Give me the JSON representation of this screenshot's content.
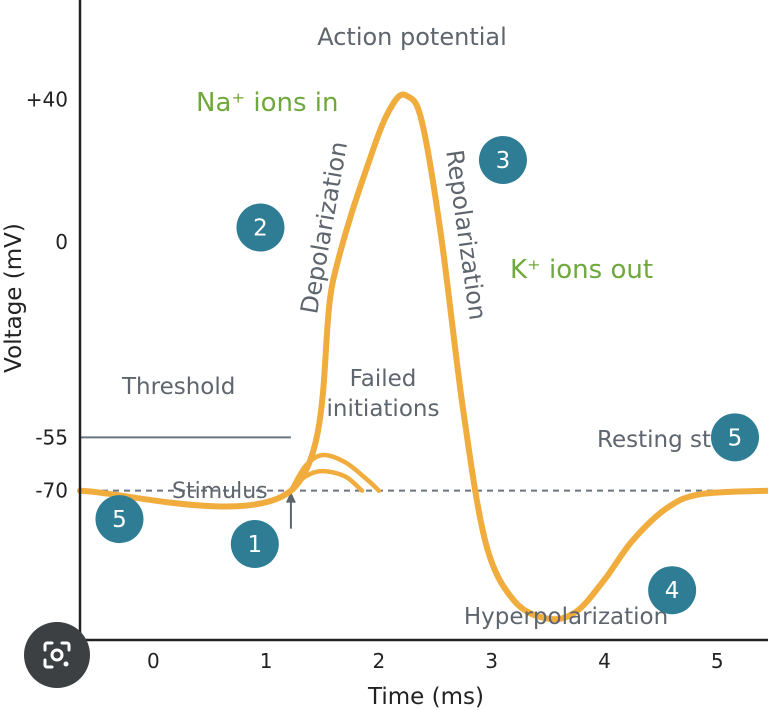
{
  "chart_data": {
    "type": "line",
    "title": "Action potential",
    "xlabel": "Time (ms)",
    "ylabel": "Voltage (mV)",
    "xlim": [
      -0.65,
      5.45
    ],
    "ylim": [
      -112,
      68
    ],
    "x_ticks": [
      {
        "value": 0,
        "label": "0"
      },
      {
        "value": 1,
        "label": "1"
      },
      {
        "value": 2,
        "label": "2"
      },
      {
        "value": 3,
        "label": "3"
      },
      {
        "value": 4,
        "label": "4"
      },
      {
        "value": 5,
        "label": "5"
      }
    ],
    "y_ticks": [
      {
        "value": 40,
        "label": "+40"
      },
      {
        "value": 0,
        "label": "0"
      },
      {
        "value": -55,
        "label": "-55"
      },
      {
        "value": -70,
        "label": "-70"
      }
    ],
    "series": [
      {
        "name": "Action potential",
        "color": "#f0ac3c",
        "points": [
          [
            -0.65,
            -70
          ],
          [
            1.22,
            -70
          ],
          [
            1.6,
            -10
          ],
          [
            1.95,
            26
          ],
          [
            2.13,
            39
          ],
          [
            2.25,
            41
          ],
          [
            2.38,
            34
          ],
          [
            2.55,
            2
          ],
          [
            2.75,
            -48
          ],
          [
            2.95,
            -85
          ],
          [
            3.2,
            -101
          ],
          [
            3.5,
            -106
          ],
          [
            3.75,
            -104
          ],
          [
            4.0,
            -95
          ],
          [
            4.25,
            -84
          ],
          [
            4.55,
            -75
          ],
          [
            4.85,
            -71
          ],
          [
            5.45,
            -70
          ]
        ]
      },
      {
        "name": "Failed initiation 1",
        "color": "#f0ac3c",
        "points": [
          [
            1.22,
            -70
          ],
          [
            1.35,
            -63
          ],
          [
            1.5,
            -60
          ],
          [
            1.7,
            -62
          ],
          [
            1.9,
            -67
          ],
          [
            2.0,
            -70
          ]
        ]
      },
      {
        "name": "Failed initiation 2",
        "color": "#f0ac3c",
        "points": [
          [
            1.22,
            -70
          ],
          [
            1.35,
            -66
          ],
          [
            1.5,
            -64.5
          ],
          [
            1.7,
            -66
          ],
          [
            1.85,
            -70
          ]
        ]
      }
    ],
    "reference_lines": [
      {
        "name": "Threshold",
        "value": -55,
        "x_end": 1.22
      },
      {
        "name": "Resting state",
        "value": -70,
        "style": "dashed"
      }
    ],
    "annotations": {
      "title": "Action potential",
      "na_ions": "Na⁺ ions in",
      "k_ions": "K⁺ ions out",
      "depolarization": "Depolarization",
      "repolarization": "Repolarization",
      "threshold": "Threshold",
      "failed_line1": "Failed",
      "failed_line2": "initiations",
      "resting": "Resting state",
      "stimulus": "Stimulus",
      "hyperpolarization": "Hyperpolarization"
    },
    "phase_markers": [
      {
        "label": "1",
        "x": 0.9,
        "y": -85
      },
      {
        "label": "2",
        "x": 0.95,
        "y": 4
      },
      {
        "label": "3",
        "x": 3.1,
        "y": 23
      },
      {
        "label": "4",
        "x": 4.6,
        "y": -98
      },
      {
        "label": "5",
        "x": -0.3,
        "y": -78
      },
      {
        "label": "5",
        "x": 5.55,
        "y": -55
      }
    ],
    "colors": {
      "curve": "#f0ac3c",
      "badge": "#2e7d94",
      "green_text": "#6fa83c",
      "gray_text": "#5e656d",
      "axis": "#222222",
      "reference": "#6b7580"
    }
  },
  "overlay": {
    "lens_icon": "lens-camera-icon"
  }
}
